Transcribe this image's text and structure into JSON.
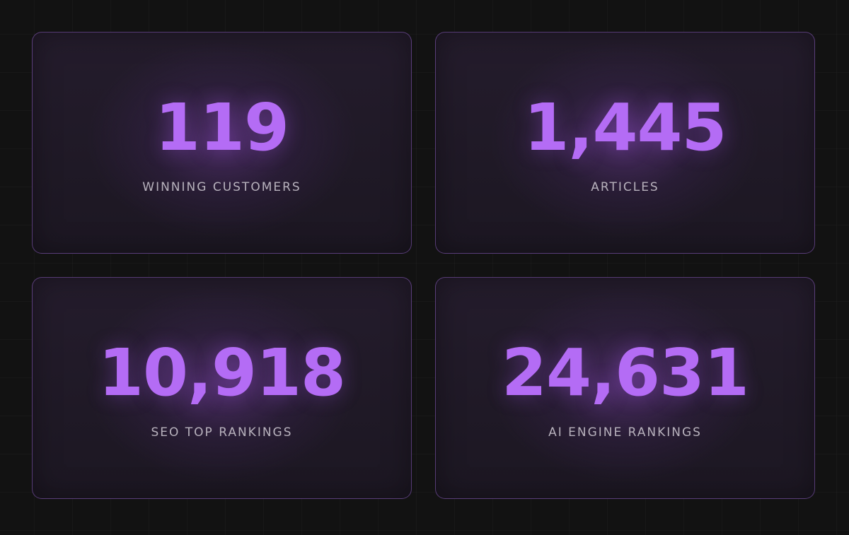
{
  "stats": [
    {
      "value": "119",
      "label": "WINNING CUSTOMERS"
    },
    {
      "value": "1,445",
      "label": "ARTICLES"
    },
    {
      "value": "10,918",
      "label": "SEO TOP RANKINGS"
    },
    {
      "value": "24,631",
      "label": "AI ENGINE RANKINGS"
    }
  ],
  "colors": {
    "background": "#121212",
    "card_border": "#a86ee6",
    "value_accent": "#b46cf5",
    "label_text": "#b8b2bd"
  }
}
